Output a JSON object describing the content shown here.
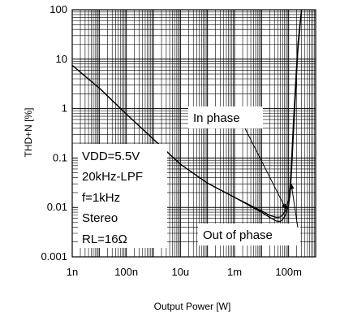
{
  "chart_data": {
    "type": "line",
    "xlabel": "Output Power [W]",
    "ylabel": "THD+N [%]",
    "xscale": "log",
    "yscale": "log",
    "xlim": [
      1e-09,
      1
    ],
    "ylim": [
      0.001,
      100
    ],
    "grid": true,
    "x_ticks": [
      {
        "value": 1e-09,
        "label": "1n"
      },
      {
        "value": 1e-07,
        "label": "100n"
      },
      {
        "value": 1e-05,
        "label": "10u"
      },
      {
        "value": 0.001,
        "label": "1m"
      },
      {
        "value": 0.1,
        "label": "100m"
      }
    ],
    "y_ticks": [
      {
        "value": 0.001,
        "label": "0.001"
      },
      {
        "value": 0.01,
        "label": "0.01"
      },
      {
        "value": 0.1,
        "label": "0.1"
      },
      {
        "value": 1,
        "label": "1"
      },
      {
        "value": 10,
        "label": "10"
      },
      {
        "value": 100,
        "label": "100"
      }
    ],
    "conditions": [
      "VDD=5.5V",
      "20kHz-LPF",
      "f=1kHz",
      "Stereo",
      "RL=16Ω"
    ],
    "series": [
      {
        "name": "In phase",
        "color": "#000000",
        "x": [
          1e-09,
          1e-08,
          1e-07,
          1e-06,
          1e-05,
          0.0001,
          0.001,
          0.01,
          0.02,
          0.035,
          0.05,
          0.065,
          0.08,
          0.1,
          0.115,
          0.13,
          0.15,
          0.18,
          0.22,
          0.3
        ],
        "y": [
          7.5,
          2.6,
          0.78,
          0.24,
          0.075,
          0.031,
          0.016,
          0.0085,
          0.0069,
          0.0063,
          0.0064,
          0.0075,
          0.0092,
          0.014,
          0.03,
          0.1,
          0.5,
          3,
          20,
          100
        ]
      },
      {
        "name": "Out of phase",
        "color": "#000000",
        "x": [
          1e-09,
          1e-08,
          1e-07,
          1e-06,
          1e-05,
          0.0001,
          0.001,
          0.01,
          0.02,
          0.035,
          0.05,
          0.065,
          0.08,
          0.1,
          0.115,
          0.13,
          0.15,
          0.18,
          0.22,
          0.3
        ],
        "y": [
          7.5,
          2.6,
          0.78,
          0.24,
          0.075,
          0.031,
          0.016,
          0.008,
          0.0063,
          0.0053,
          0.0052,
          0.006,
          0.0075,
          0.011,
          0.02,
          0.06,
          0.3,
          2,
          15,
          100
        ]
      }
    ],
    "annotations": [
      {
        "text": "In phase",
        "series": "In phase",
        "target_x": 0.08,
        "target_y": 0.0092
      },
      {
        "text": "Out of phase",
        "series": "Out of phase",
        "target_x": 0.125,
        "target_y": 0.03
      }
    ]
  }
}
